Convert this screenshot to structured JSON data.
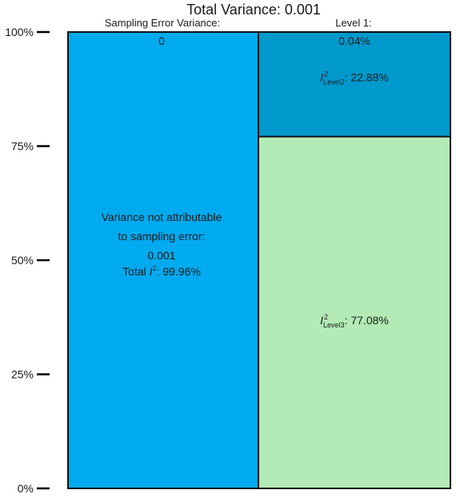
{
  "chart_data": {
    "type": "bar",
    "title": "Total Variance: 0.001",
    "columns": [
      {
        "header": "Sampling Error Variance:",
        "segments": [
          {
            "name": "Sampling error",
            "value": 0.04,
            "color": "#00aaee",
            "label": "0"
          },
          {
            "name": "Variance not attributable to sampling error",
            "value": 99.96,
            "color": "#00aaee",
            "label_lines": [
              "Variance not attributable",
              "to sampling error:",
              "0.001"
            ],
            "i2_prefix": "Total ",
            "i2_symbol": "I",
            "i2_sup": "2",
            "i2_value": ": 99.96%"
          }
        ]
      },
      {
        "header": "Level 1:",
        "segments": [
          {
            "name": "Level 1",
            "value": 0.04,
            "color": "#0099cc",
            "label": "0.04%"
          },
          {
            "name": "Level 2",
            "value": 22.88,
            "color": "#0099cc",
            "i2_symbol": "I",
            "i2_sup": "2",
            "i2_sub": "Level2",
            "i2_value": ": 22.88%"
          },
          {
            "name": "Level 3",
            "value": 77.08,
            "color": "#b3eab5",
            "i2_symbol": "I",
            "i2_sup": "2",
            "i2_sub": "Level3",
            "i2_value": ": 77.08%"
          }
        ]
      }
    ],
    "y_ticks": [
      "0%",
      "25%",
      "50%",
      "75%",
      "100%"
    ],
    "ylim": [
      0,
      100
    ]
  }
}
